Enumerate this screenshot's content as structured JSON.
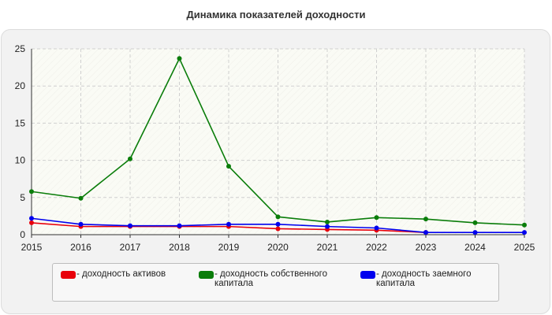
{
  "chart_data": {
    "type": "line",
    "title": "Динамика показателей доходности",
    "x": [
      2015,
      2016,
      2017,
      2018,
      2019,
      2020,
      2021,
      2022,
      2023,
      2024,
      2025
    ],
    "ylim": [
      0,
      25
    ],
    "yticks": [
      0,
      5,
      10,
      15,
      20,
      25
    ],
    "grid": true,
    "legend_position": "bottom",
    "series": [
      {
        "name": "- доходность активов",
        "label_lines": [
          "- доходность активов"
        ],
        "color": "#e8000b",
        "values": [
          1.6,
          1.1,
          1.1,
          1.1,
          1.1,
          0.8,
          0.7,
          0.6,
          0.3,
          null,
          null
        ]
      },
      {
        "name": "- доходность собственного капитала",
        "label_lines": [
          "- доходность собственного",
          "капитала"
        ],
        "color": "#0a7d0a",
        "values": [
          5.8,
          4.9,
          10.2,
          23.7,
          9.2,
          2.4,
          1.7,
          2.3,
          2.1,
          1.6,
          1.3
        ]
      },
      {
        "name": "- доходность заемного капитала",
        "label_lines": [
          "- доходность заемного",
          "капитала"
        ],
        "color": "#0000ee",
        "values": [
          2.2,
          1.4,
          1.2,
          1.2,
          1.4,
          1.4,
          1.1,
          0.9,
          0.3,
          0.3,
          0.3
        ]
      }
    ]
  }
}
